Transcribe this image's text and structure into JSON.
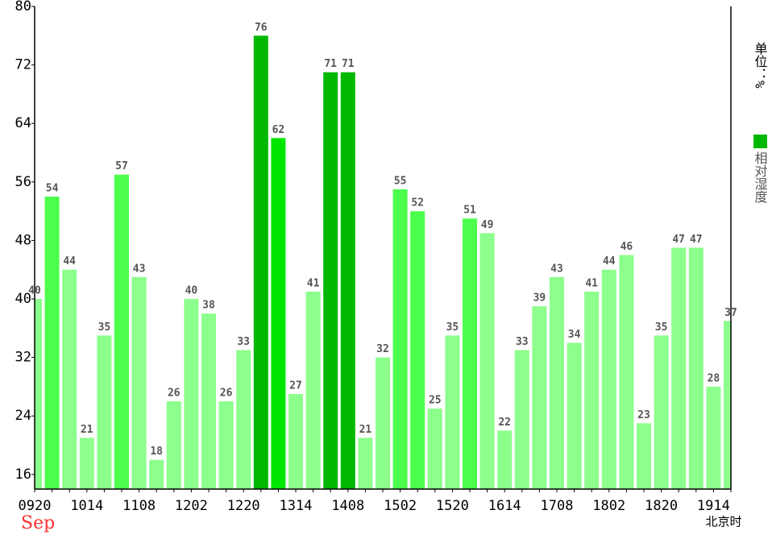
{
  "chart_data": {
    "type": "bar",
    "unit_label": "单位：%",
    "month": "Sep",
    "time_label": "北京时",
    "categories": [
      "0920",
      null,
      null,
      "1014",
      null,
      null,
      "1108",
      null,
      null,
      "1202",
      null,
      null,
      "1220",
      null,
      null,
      "1314",
      null,
      null,
      "1408",
      null,
      null,
      "1502",
      null,
      null,
      "1520",
      null,
      null,
      "1614",
      null,
      null,
      "1708",
      null,
      null,
      "1802",
      null,
      null,
      "1820",
      null,
      null,
      "1914",
      null
    ],
    "series": [
      {
        "name": "相对湿度",
        "color": "#00b800",
        "values": [
          40,
          54,
          44,
          21,
          35,
          57,
          43,
          18,
          26,
          40,
          38,
          26,
          33,
          76,
          62,
          27,
          41,
          71,
          71,
          21,
          32,
          55,
          52,
          25,
          35,
          51,
          49,
          22,
          33,
          39,
          43,
          34,
          41,
          44,
          46,
          23,
          35,
          47,
          47,
          28,
          37
        ],
        "colors": [
          "#8cff8c",
          "#4cff4c",
          "#8cff8c",
          "#8cff8c",
          "#8cff8c",
          "#4cff4c",
          "#8cff8c",
          "#8cff8c",
          "#8cff8c",
          "#8cff8c",
          "#8cff8c",
          "#8cff8c",
          "#8cff8c",
          "#00b800",
          "#00e600",
          "#8cff8c",
          "#8cff8c",
          "#00b800",
          "#00b800",
          "#8cff8c",
          "#8cff8c",
          "#4cff4c",
          "#4cff4c",
          "#8cff8c",
          "#8cff8c",
          "#4cff4c",
          "#8cff8c",
          "#8cff8c",
          "#8cff8c",
          "#8cff8c",
          "#8cff8c",
          "#8cff8c",
          "#8cff8c",
          "#8cff8c",
          "#8cff8c",
          "#8cff8c",
          "#8cff8c",
          "#8cff8c",
          "#8cff8c",
          "#8cff8c",
          "#8cff8c"
        ]
      }
    ],
    "ylim": [
      14,
      80
    ],
    "yticks": [
      16,
      24,
      32,
      40,
      48,
      56,
      64,
      72,
      80
    ]
  }
}
